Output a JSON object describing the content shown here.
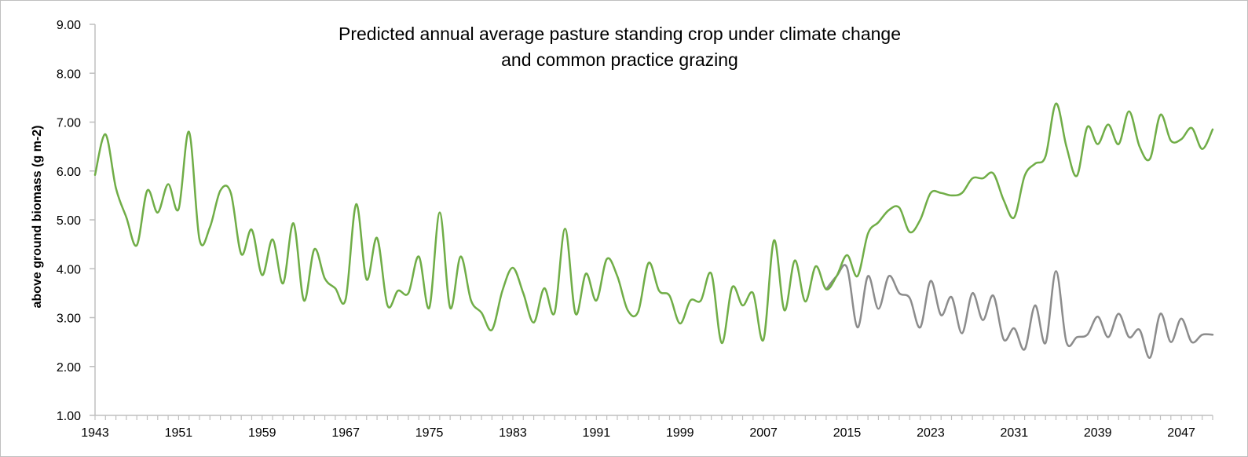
{
  "chart_data": {
    "type": "line",
    "title": [
      "Predicted annual average pasture standing crop under climate change",
      "and common practice grazing"
    ],
    "xlabel": "",
    "ylabel": "above ground biomass (g m-2)",
    "ylim": [
      1.0,
      9.0
    ],
    "ytick_labels": [
      "1.00",
      "2.00",
      "3.00",
      "4.00",
      "5.00",
      "6.00",
      "7.00",
      "8.00",
      "9.00"
    ],
    "xlim": [
      1943,
      2050
    ],
    "xtick_labels": [
      "1943",
      "1951",
      "1959",
      "1967",
      "1975",
      "1983",
      "1991",
      "1999",
      "2007",
      "2015",
      "2023",
      "2031",
      "2039",
      "2047"
    ],
    "grid": false,
    "legend": "none",
    "series": [
      {
        "color": "#70ad47",
        "x": [
          1943,
          1944,
          1945,
          1946,
          1947,
          1948,
          1949,
          1950,
          1951,
          1952,
          1953,
          1954,
          1955,
          1956,
          1957,
          1958,
          1959,
          1960,
          1961,
          1962,
          1963,
          1964,
          1965,
          1966,
          1967,
          1968,
          1969,
          1970,
          1971,
          1972,
          1973,
          1974,
          1975,
          1976,
          1977,
          1978,
          1979,
          1980,
          1981,
          1982,
          1983,
          1984,
          1985,
          1986,
          1987,
          1988,
          1989,
          1990,
          1991,
          1992,
          1993,
          1994,
          1995,
          1996,
          1997,
          1998,
          1999,
          2000,
          2001,
          2002,
          2003,
          2004,
          2005,
          2006,
          2007,
          2008,
          2009,
          2010,
          2011,
          2012,
          2013,
          2014,
          2015,
          2016,
          2017,
          2018,
          2019,
          2020,
          2021,
          2022,
          2023,
          2024,
          2025,
          2026,
          2027,
          2028,
          2029,
          2030,
          2031,
          2032,
          2033,
          2034,
          2035,
          2036,
          2037,
          2038,
          2039,
          2040,
          2041,
          2042,
          2043,
          2044,
          2045,
          2046,
          2047,
          2048,
          2049,
          2050
        ],
        "values": [
          5.92,
          6.75,
          5.65,
          5.05,
          4.48,
          5.6,
          5.15,
          5.73,
          5.22,
          6.8,
          4.6,
          4.85,
          5.6,
          5.55,
          4.3,
          4.8,
          3.87,
          4.6,
          3.7,
          4.93,
          3.35,
          4.4,
          3.8,
          3.6,
          3.38,
          5.32,
          3.78,
          4.63,
          3.25,
          3.55,
          3.5,
          4.25,
          3.2,
          5.15,
          3.2,
          4.25,
          3.35,
          3.1,
          2.75,
          3.55,
          4.02,
          3.5,
          2.9,
          3.6,
          3.1,
          4.82,
          3.08,
          3.9,
          3.35,
          4.2,
          3.85,
          3.15,
          3.12,
          4.12,
          3.55,
          3.45,
          2.88,
          3.35,
          3.35,
          3.9,
          2.48,
          3.62,
          3.25,
          3.5,
          2.55,
          4.58,
          3.15,
          4.17,
          3.33,
          4.05,
          3.58,
          3.85,
          4.28,
          3.85,
          4.72,
          4.95,
          5.2,
          5.25,
          4.75,
          5.0,
          5.55,
          5.55,
          5.5,
          5.55,
          5.85,
          5.85,
          5.95,
          5.4,
          5.05,
          5.9,
          6.15,
          6.3,
          7.38,
          6.5,
          5.9,
          6.9,
          6.55,
          6.95,
          6.55,
          7.22,
          6.5,
          6.25,
          7.15,
          6.62,
          6.65,
          6.88,
          6.45,
          6.85
        ]
      },
      {
        "color": "#8c8c8c",
        "x": [
          2013,
          2014,
          2015,
          2016,
          2017,
          2018,
          2019,
          2020,
          2021,
          2022,
          2023,
          2024,
          2025,
          2026,
          2027,
          2028,
          2029,
          2030,
          2031,
          2032,
          2033,
          2034,
          2035,
          2036,
          2037,
          2038,
          2039,
          2040,
          2041,
          2042,
          2043,
          2044,
          2045,
          2046,
          2047,
          2048,
          2049,
          2050
        ],
        "values": [
          3.58,
          3.85,
          4.02,
          2.8,
          3.85,
          3.18,
          3.85,
          3.5,
          3.4,
          2.8,
          3.75,
          3.05,
          3.42,
          2.68,
          3.5,
          2.95,
          3.45,
          2.55,
          2.78,
          2.35,
          3.25,
          2.48,
          3.95,
          2.5,
          2.6,
          2.65,
          3.02,
          2.6,
          3.08,
          2.6,
          2.75,
          2.18,
          3.08,
          2.5,
          2.98,
          2.5,
          2.65,
          2.65
        ]
      }
    ]
  }
}
